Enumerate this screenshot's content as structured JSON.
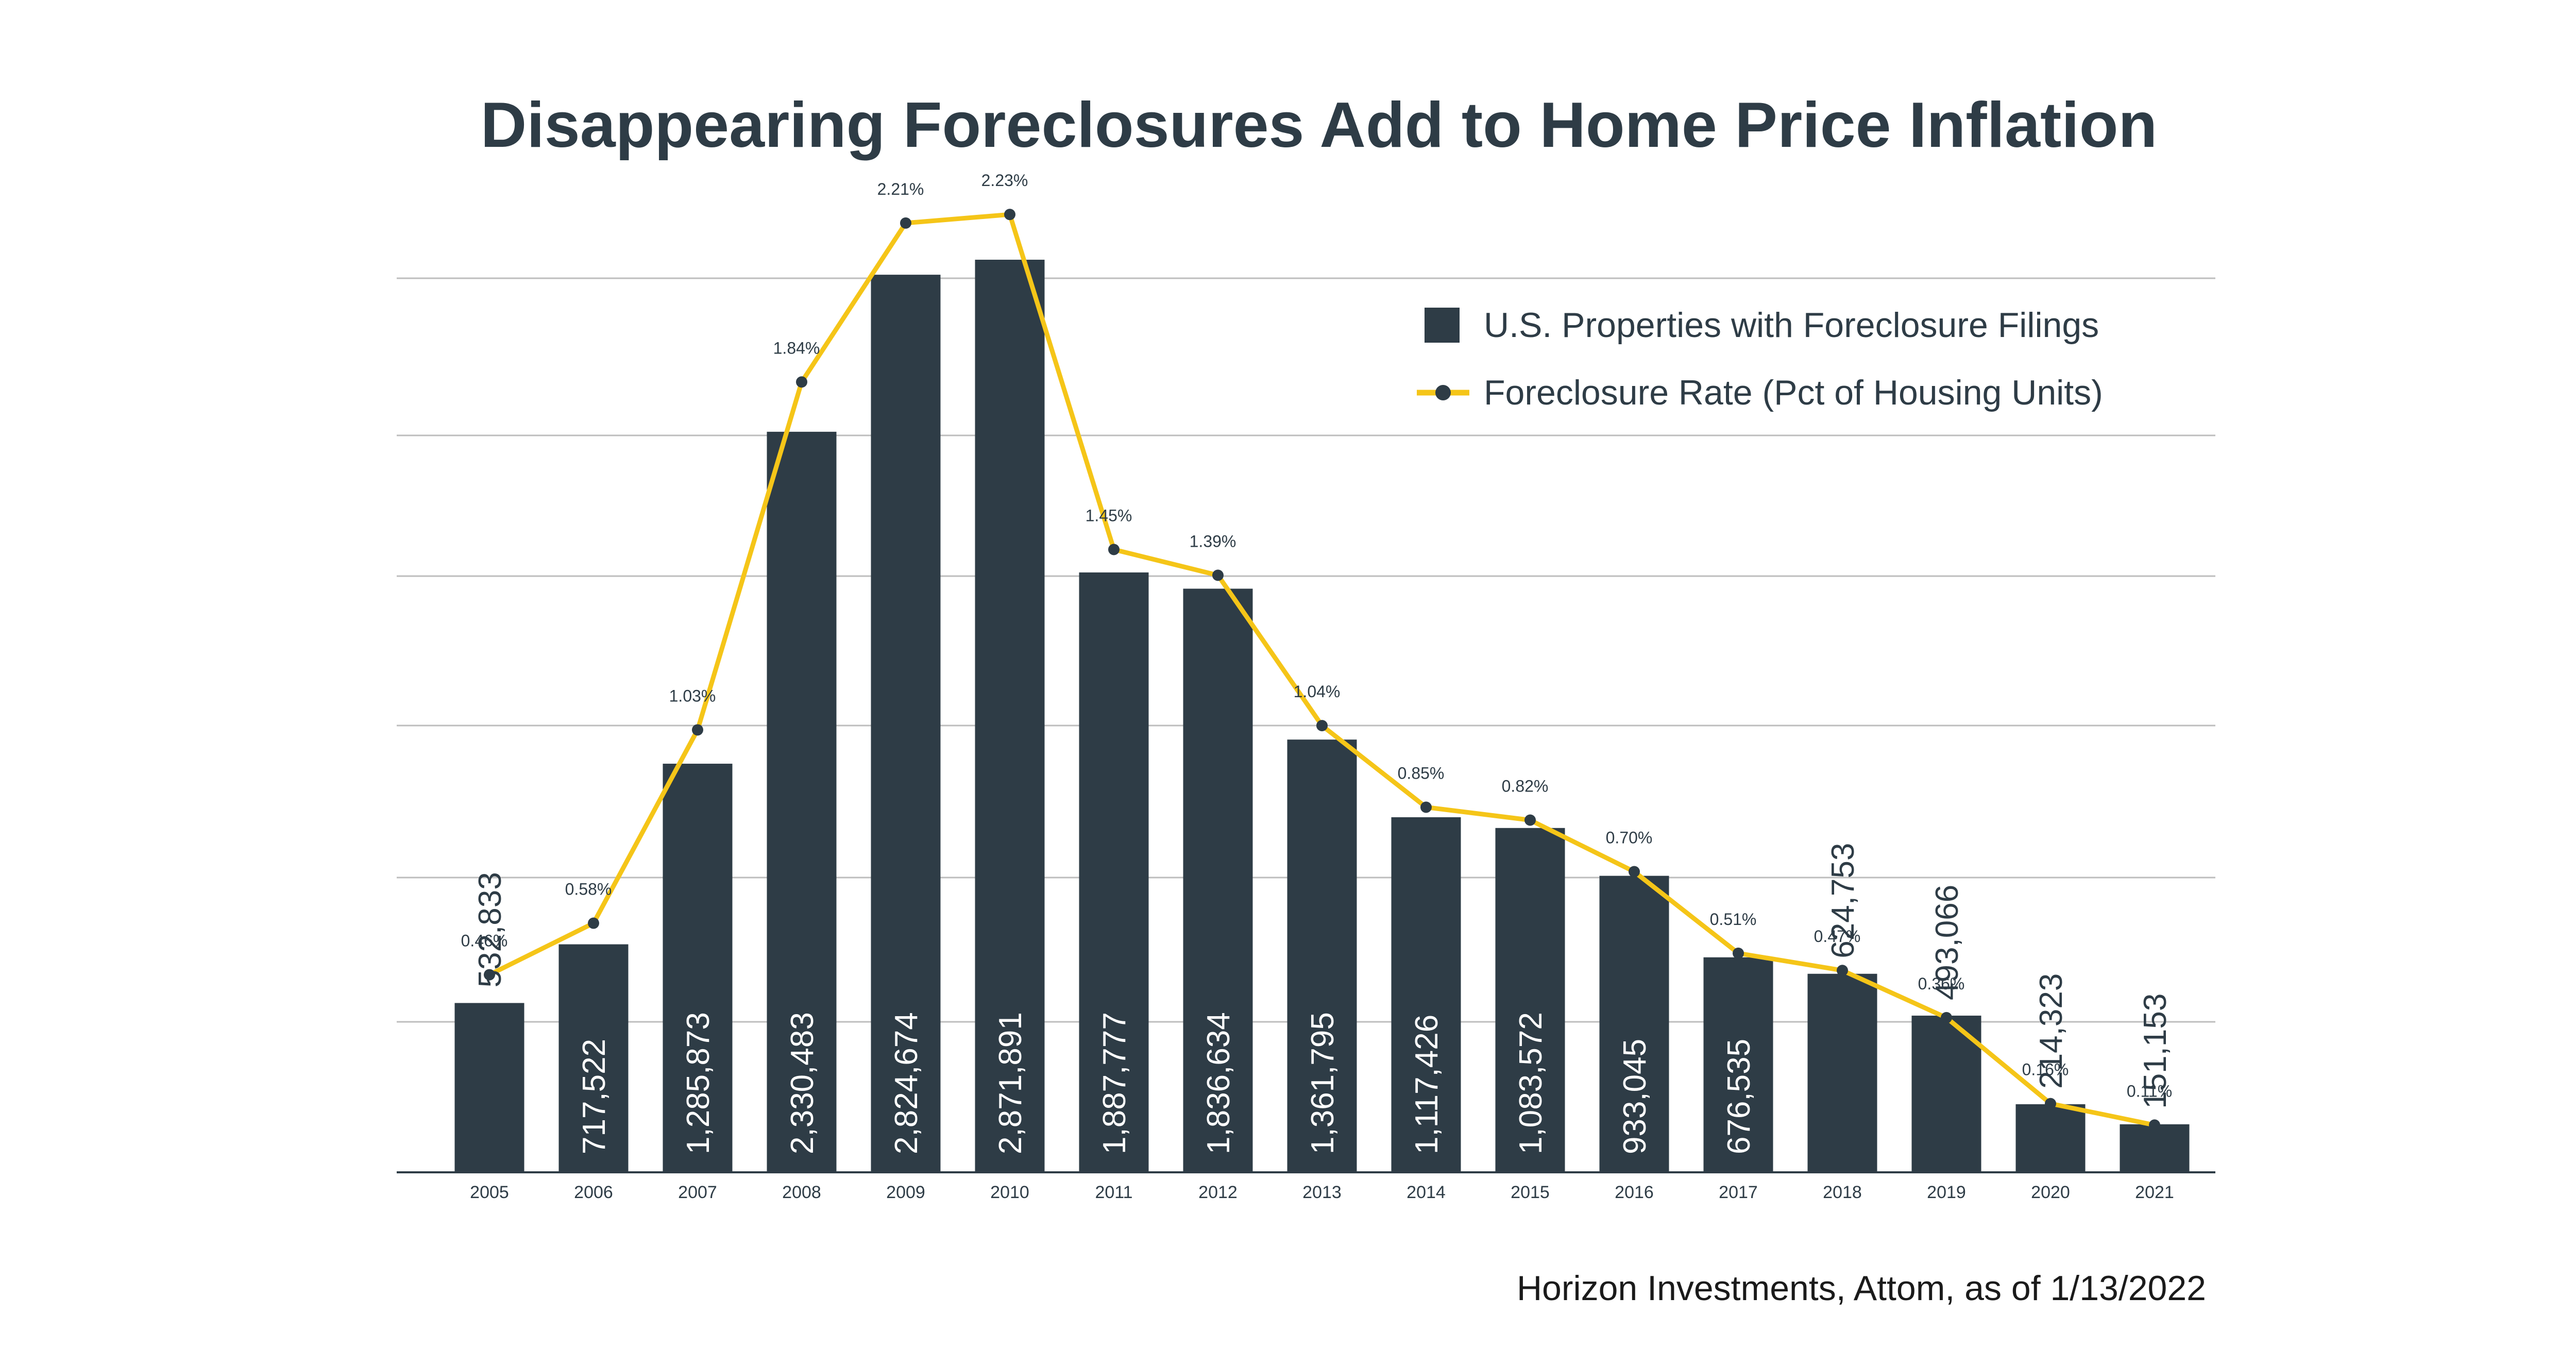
{
  "chart_data": {
    "type": "bar",
    "title": "Disappearing Foreclosures Add to Home Price Inflation",
    "source": "Horizon Investments, Attom, as of 1/13/2022",
    "categories": [
      "2005",
      "2006",
      "2007",
      "2008",
      "2009",
      "2010",
      "2011",
      "2012",
      "2013",
      "2014",
      "2015",
      "2016",
      "2017",
      "2018",
      "2019",
      "2020",
      "2021"
    ],
    "series": [
      {
        "name": "U.S. Properties with Foreclosure Filings",
        "type": "bar",
        "color": "#2e3c46",
        "values": [
          532833,
          717522,
          1285873,
          2330483,
          2824674,
          2871891,
          1887777,
          1836634,
          1361795,
          1117426,
          1083572,
          933045,
          676535,
          624753,
          493066,
          214323,
          151153
        ],
        "labels": [
          "532,833",
          "717,522",
          "1,285,873",
          "2,330,483",
          "2,824,674",
          "2,871,891",
          "1,887,777",
          "1,836,634",
          "1,361,795",
          "1,117,426",
          "1,083,572",
          "933,045",
          "676,535",
          "624,753",
          "493,066",
          "214,323",
          "151,153"
        ]
      },
      {
        "name": "Foreclosure Rate (Pct of Housing Units)",
        "type": "line",
        "color": "#f5c518",
        "values": [
          0.46,
          0.58,
          1.03,
          1.84,
          2.21,
          2.23,
          1.45,
          1.39,
          1.04,
          0.85,
          0.82,
          0.7,
          0.51,
          0.47,
          0.36,
          0.16,
          0.11
        ],
        "labels": [
          "0.46%",
          "0.58%",
          "1.03%",
          "1.84%",
          "2.21%",
          "2.23%",
          "1.45%",
          "1.39%",
          "1.04%",
          "0.85%",
          "0.82%",
          "0.70%",
          "0.51%",
          "0.47%",
          "0.36%",
          "0.16%",
          "0.11%"
        ]
      }
    ],
    "grid": true,
    "legend_position": "top-right"
  }
}
